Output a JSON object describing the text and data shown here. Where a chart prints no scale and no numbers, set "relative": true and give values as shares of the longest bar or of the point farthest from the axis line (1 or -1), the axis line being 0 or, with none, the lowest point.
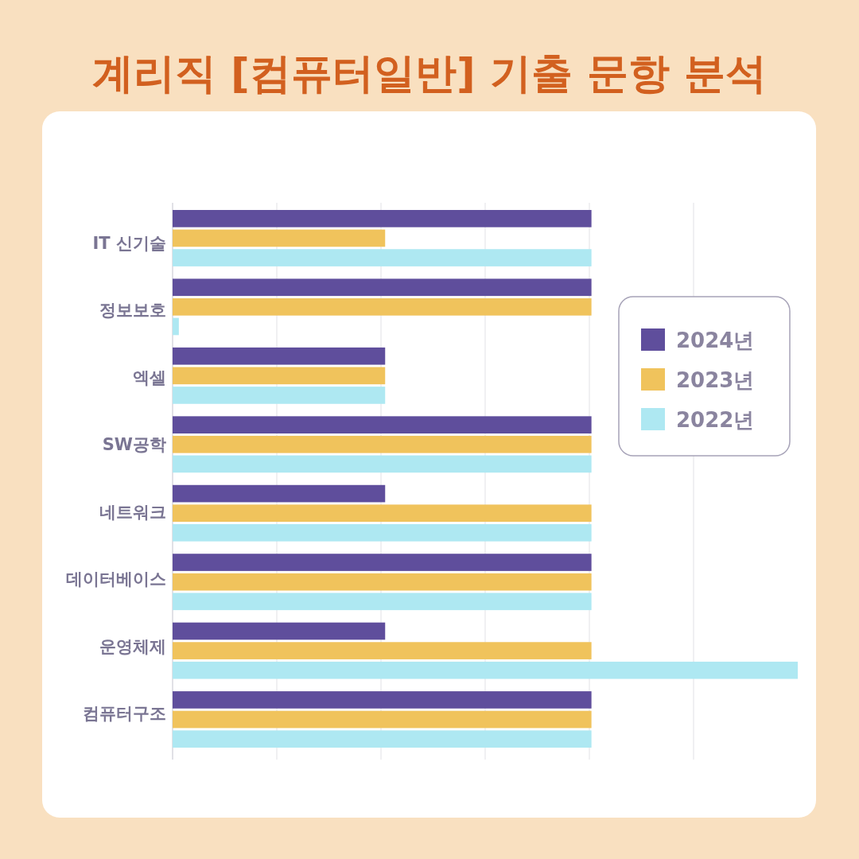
{
  "chart_data": {
    "type": "bar",
    "orientation": "horizontal",
    "relative": true,
    "title": "계리직 [컴퓨터일반] 기출 문항 분석",
    "categories": [
      "IT 신기술",
      "정보보호",
      "엑셀",
      "SW공학",
      "네트워크",
      "데이터베이스",
      "운영체제",
      "컴퓨터구조"
    ],
    "series": [
      {
        "name": "2024년",
        "color": "#5f4e9c",
        "values": [
          0.67,
          0.67,
          0.34,
          0.67,
          0.34,
          0.67,
          0.34,
          0.67
        ]
      },
      {
        "name": "2023년",
        "color": "#f0c35c",
        "values": [
          0.34,
          0.67,
          0.34,
          0.67,
          0.67,
          0.67,
          0.67,
          0.67
        ]
      },
      {
        "name": "2022년",
        "color": "#aee8f2",
        "values": [
          0.67,
          0.01,
          0.34,
          0.67,
          0.67,
          0.67,
          1,
          0.67
        ]
      }
    ],
    "grid": "x",
    "legend": "right"
  }
}
